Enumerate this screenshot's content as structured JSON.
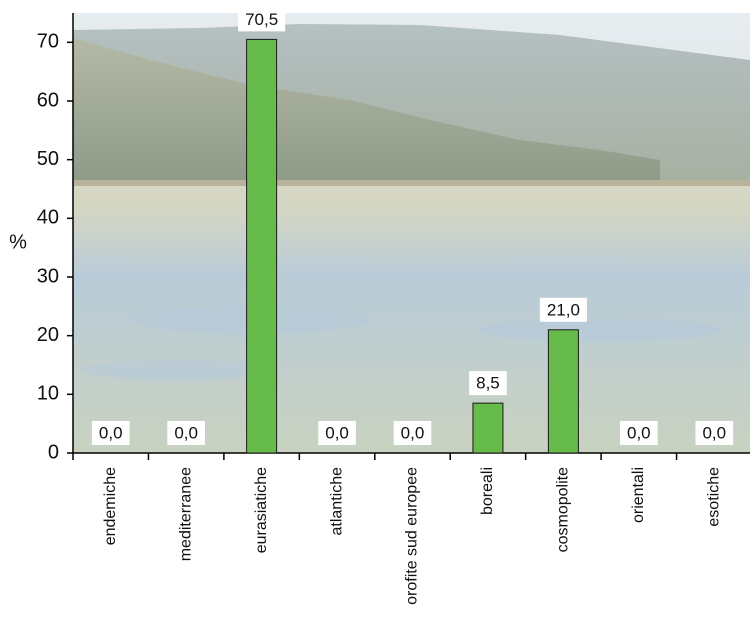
{
  "chart_data": {
    "type": "bar",
    "y_label": "%",
    "categories": [
      "endemiche",
      "mediterranee",
      "eurasiatiche",
      "atlantiche",
      "orofite sud europee",
      "boreali",
      "cosmopolite",
      "orientali",
      "esotiche"
    ],
    "values": [
      0,
      0,
      70.5,
      0,
      0,
      8.5,
      21,
      0,
      0
    ],
    "value_labels": [
      "0,0",
      "0,0",
      "70,5",
      "0,0",
      "0,0",
      "8,5",
      "21,0",
      "0,0",
      "0,0"
    ],
    "color": "#66bb4a",
    "ylim": [
      0,
      75
    ],
    "yticks": [
      0,
      10,
      20,
      30,
      40,
      50,
      60,
      70
    ]
  }
}
